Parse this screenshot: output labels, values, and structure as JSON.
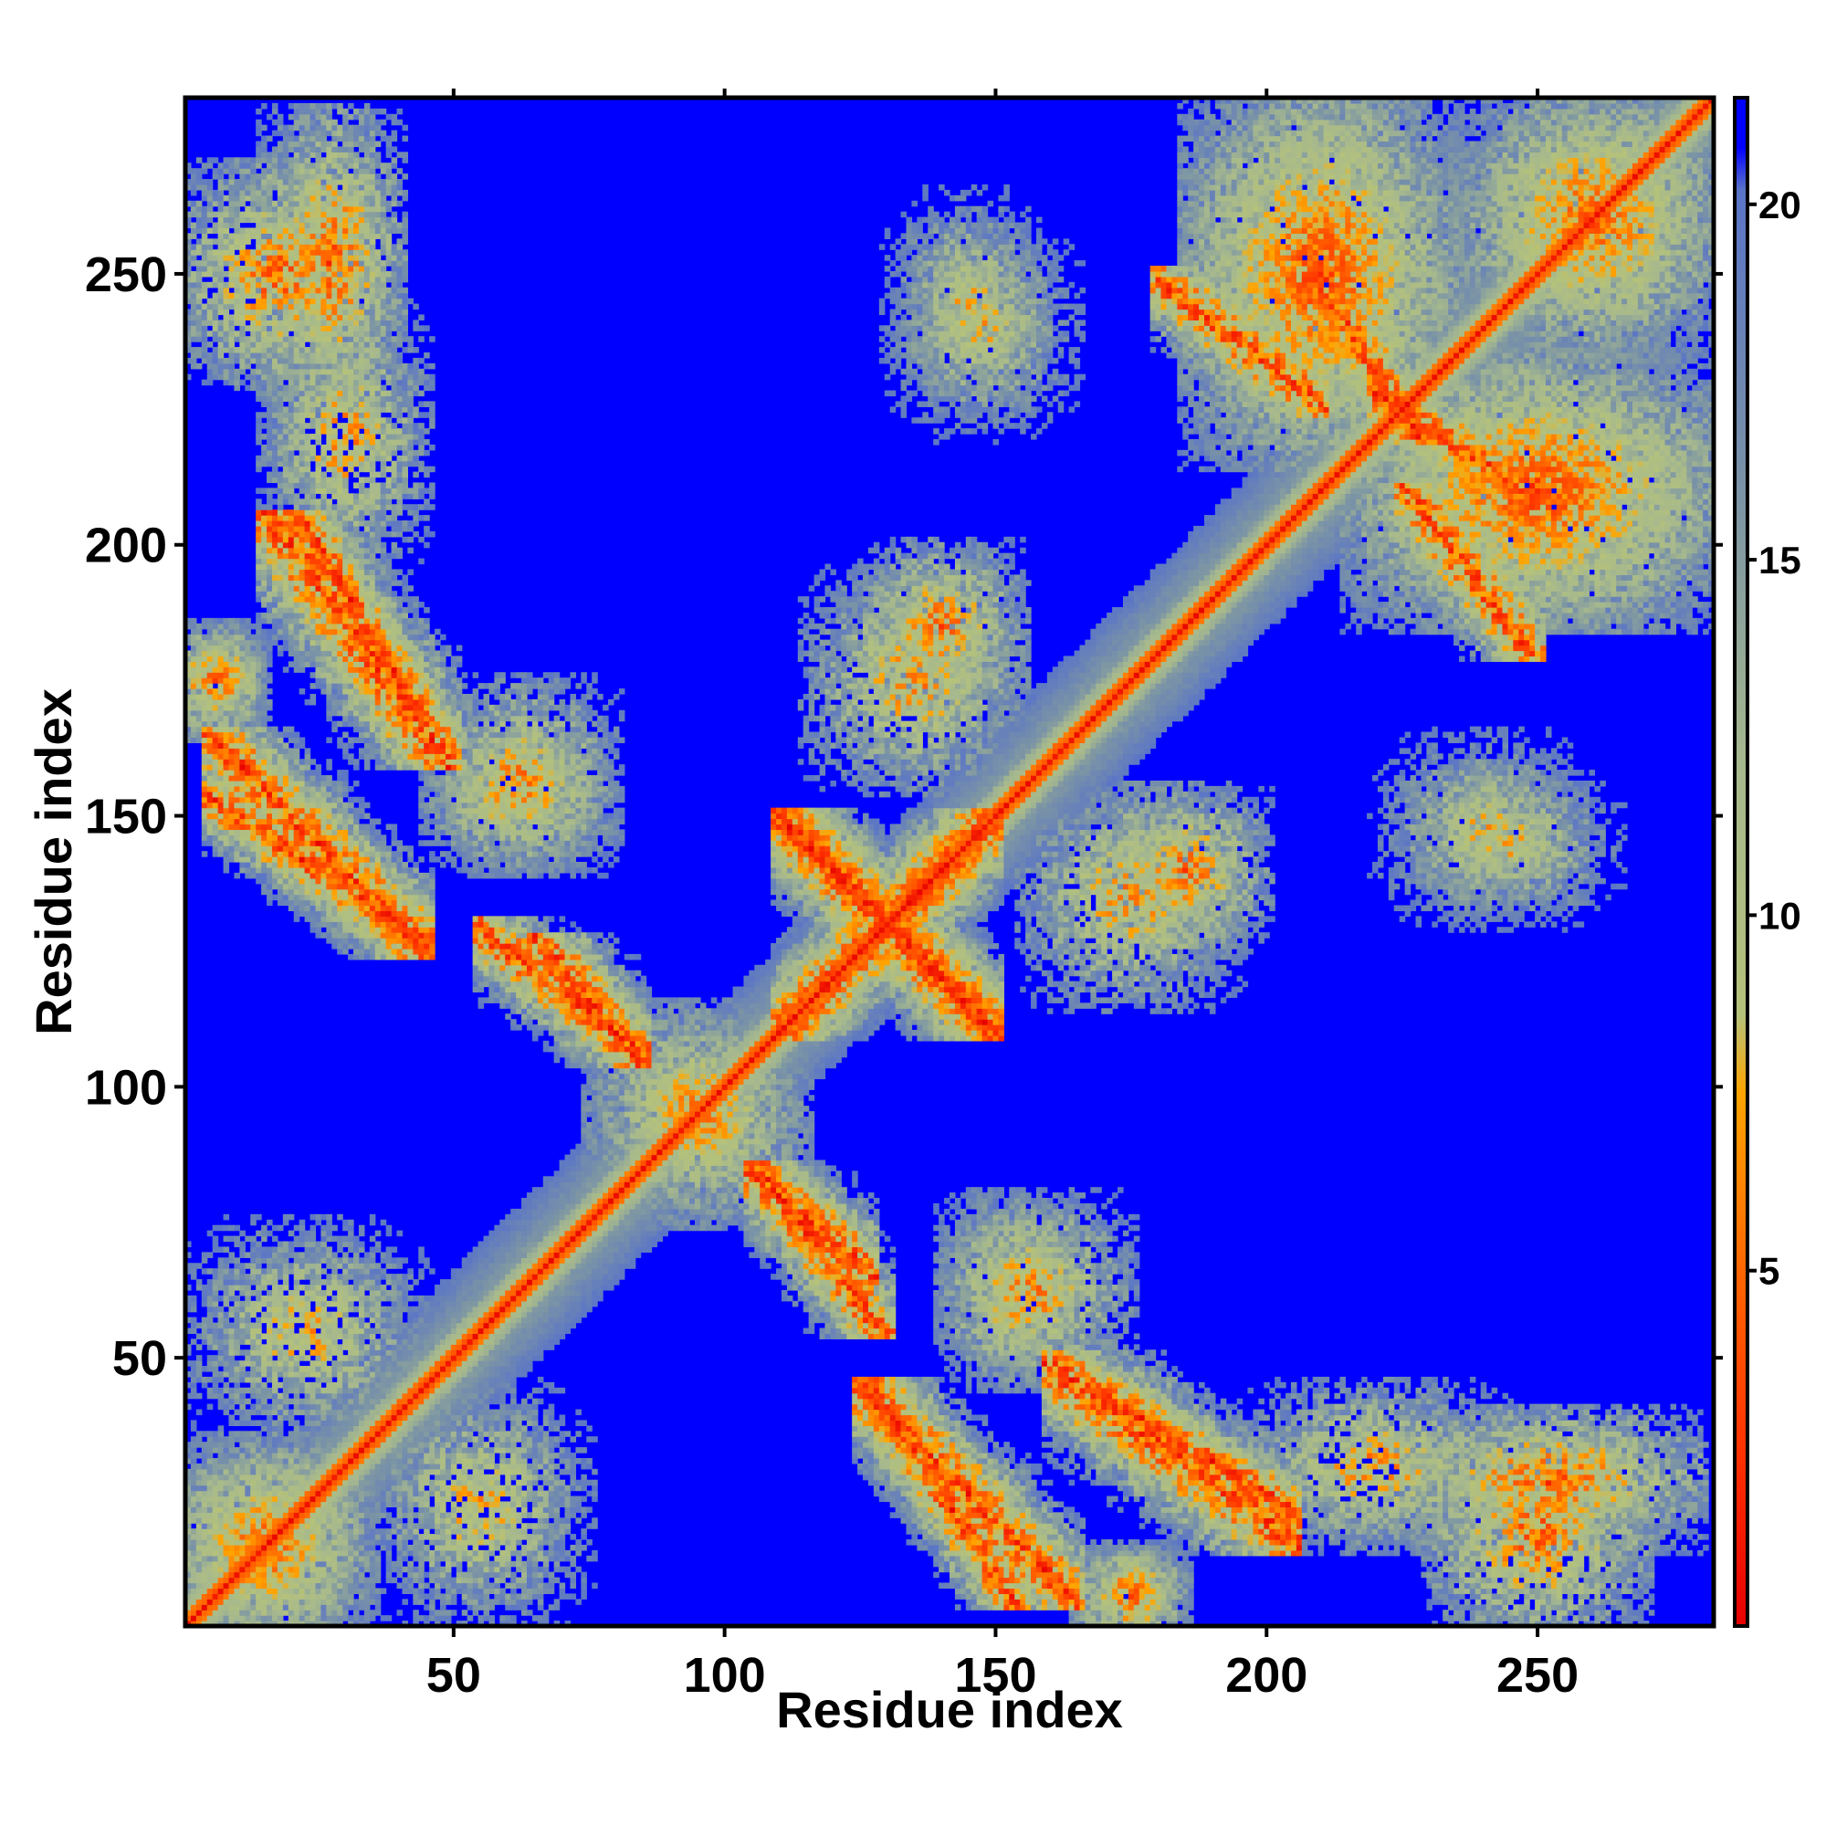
{
  "chart_data": {
    "type": "heatmap",
    "title": "",
    "xlabel": "Residue index",
    "ylabel": "Residue index",
    "xlim": [
      1,
      282
    ],
    "ylim": [
      1,
      282
    ],
    "x_ticks": [
      50,
      100,
      150,
      200,
      250
    ],
    "y_ticks": [
      50,
      100,
      150,
      200,
      250
    ],
    "colorbar": {
      "range": [
        0,
        21.5
      ],
      "ticks": [
        5,
        10,
        15,
        20
      ],
      "stops": [
        {
          "value": 0,
          "color": "#e60000"
        },
        {
          "value": 2.5,
          "color": "#ff3300"
        },
        {
          "value": 5,
          "color": "#ff6600"
        },
        {
          "value": 7.5,
          "color": "#ffa500"
        },
        {
          "value": 8.6,
          "color": "#b5c27a"
        },
        {
          "value": 12,
          "color": "#a7b98d"
        },
        {
          "value": 16,
          "color": "#7a93a6"
        },
        {
          "value": 20.2,
          "color": "#5a74c8"
        },
        {
          "value": 20.8,
          "color": "#0000ff"
        },
        {
          "value": 21.5,
          "color": "#0000ff"
        }
      ]
    },
    "background_color": "#0000ff",
    "cutoff": 20,
    "diagonal": {
      "width": 6
    },
    "contacts": [
      {
        "segA": [
          1,
          30
        ],
        "segB": [
          1,
          30
        ],
        "kind": "helix_cluster",
        "min": 6
      },
      {
        "segA": [
          40,
          70
        ],
        "segB": [
          5,
          40
        ],
        "kind": "cluster",
        "min": 8
      },
      {
        "segA": [
          20,
          35
        ],
        "segB": [
          230,
          275
        ],
        "kind": "cluster",
        "min": 5
      },
      {
        "segA": [
          25,
          40
        ],
        "segB": [
          175,
          200
        ],
        "kind": "antiparallel",
        "min": 4
      },
      {
        "segA": [
          10,
          40
        ],
        "segB": [
          130,
          160
        ],
        "kind": "antiparallel",
        "min": 4
      },
      {
        "segA": [
          5,
          10
        ],
        "segB": [
          170,
          180
        ],
        "kind": "cluster",
        "min": 6
      },
      {
        "segA": [
          50,
          75
        ],
        "segB": [
          145,
          170
        ],
        "kind": "cluster",
        "min": 7
      },
      {
        "segA": [
          70,
          80
        ],
        "segB": [
          110,
          122
        ],
        "kind": "antiparallel",
        "min": 4
      },
      {
        "segA": [
          80,
          110
        ],
        "segB": [
          80,
          110
        ],
        "kind": "cluster",
        "min": 7
      },
      {
        "segA": [
          110,
          125
        ],
        "segB": [
          60,
          80
        ],
        "kind": "antiparallel",
        "min": 4
      },
      {
        "segA": [
          115,
          145
        ],
        "segB": [
          115,
          145
        ],
        "kind": "cross",
        "min": 4
      },
      {
        "segA": [
          130,
          150
        ],
        "segB": [
          10,
          40
        ],
        "kind": "antiparallel",
        "min": 4
      },
      {
        "segA": [
          145,
          160
        ],
        "segB": [
          50,
          75
        ],
        "kind": "cluster",
        "min": 7
      },
      {
        "segA": [
          130,
          150
        ],
        "segB": [
          175,
          195
        ],
        "kind": "cluster",
        "min": 6
      },
      {
        "segA": [
          135,
          155
        ],
        "segB": [
          230,
          260
        ],
        "kind": "cluster",
        "min": 9
      },
      {
        "segA": [
          165,
          200
        ],
        "segB": [
          20,
          45
        ],
        "kind": "antiparallel",
        "min": 4
      },
      {
        "segA": [
          160,
          190
        ],
        "segB": [
          120,
          150
        ],
        "kind": "cluster",
        "min": 7
      },
      {
        "segA": [
          170,
          180
        ],
        "segB": [
          1,
          10
        ],
        "kind": "cluster",
        "min": 6
      },
      {
        "segA": [
          200,
          240
        ],
        "segB": [
          20,
          40
        ],
        "kind": "cluster",
        "min": 7
      },
      {
        "segA": [
          235,
          265
        ],
        "segB": [
          5,
          30
        ],
        "kind": "cluster",
        "min": 5
      },
      {
        "segA": [
          225,
          255
        ],
        "segB": [
          135,
          160
        ],
        "kind": "cluster",
        "min": 9
      },
      {
        "segA": [
          190,
          230
        ],
        "segB": [
          220,
          280
        ],
        "kind": "cluster",
        "min": 5
      },
      {
        "segA": [
          220,
          280
        ],
        "segB": [
          190,
          230
        ],
        "kind": "cluster",
        "min": 5
      },
      {
        "segA": [
          230,
          245
        ],
        "segB": [
          185,
          205
        ],
        "kind": "antiparallel",
        "min": 4
      },
      {
        "segA": [
          215,
          225
        ],
        "segB": [
          225,
          240
        ],
        "kind": "antiparallel",
        "min": 4
      },
      {
        "segA": [
          240,
          280
        ],
        "segB": [
          240,
          280
        ],
        "kind": "helix_cluster",
        "min": 6
      }
    ]
  }
}
